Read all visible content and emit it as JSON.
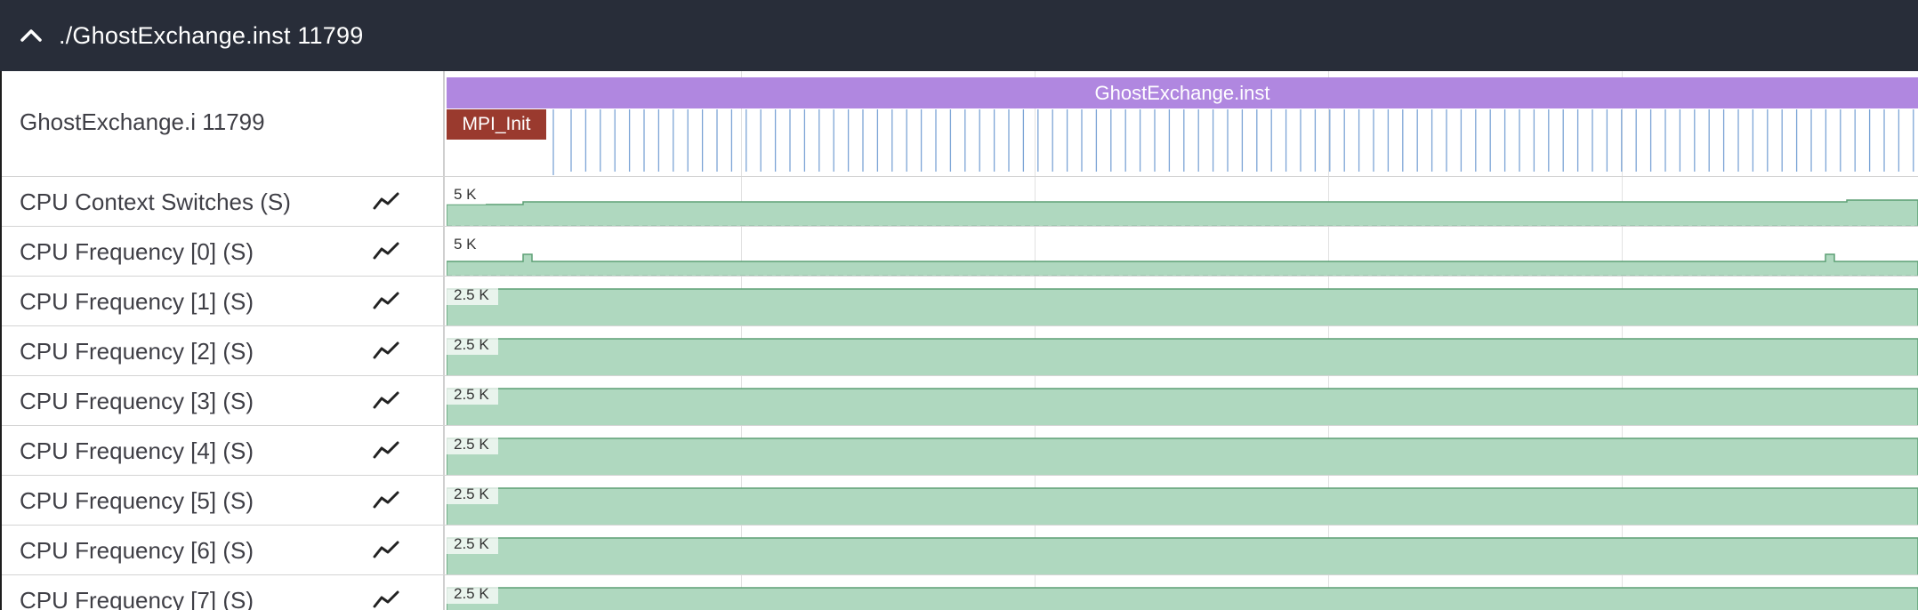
{
  "header": {
    "title": "./GhostExchange.inst 11799",
    "collapse_icon": "chevron-up-icon"
  },
  "process_track": {
    "label": "GhostExchange.i 11799",
    "slices": {
      "main": "GhostExchange.inst",
      "init": "MPI_Init"
    }
  },
  "counter_tracks": [
    {
      "label": "CPU Context Switches (S)",
      "scale": "5 K",
      "icon": "line-chart-icon"
    },
    {
      "label": "CPU Frequency [0] (S)",
      "scale": "5 K",
      "icon": "line-chart-icon"
    },
    {
      "label": "CPU Frequency [1] (S)",
      "scale": "2.5 K",
      "icon": "line-chart-icon"
    },
    {
      "label": "CPU Frequency [2] (S)",
      "scale": "2.5 K",
      "icon": "line-chart-icon"
    },
    {
      "label": "CPU Frequency [3] (S)",
      "scale": "2.5 K",
      "icon": "line-chart-icon"
    },
    {
      "label": "CPU Frequency [4] (S)",
      "scale": "2.5 K",
      "icon": "line-chart-icon"
    },
    {
      "label": "CPU Frequency [5] (S)",
      "scale": "2.5 K",
      "icon": "line-chart-icon"
    },
    {
      "label": "CPU Frequency [6] (S)",
      "scale": "2.5 K",
      "icon": "line-chart-icon"
    },
    {
      "label": "CPU Frequency [7] (S)",
      "scale": "2.5 K",
      "icon": "line-chart-icon"
    }
  ],
  "colors": {
    "header_bg": "#282d39",
    "slice_main": "#b087e0",
    "slice_init": "#9a3a2e",
    "counter_fill": "#afd8bf",
    "counter_line": "#5d9f75",
    "tick": "#7da5d6"
  }
}
